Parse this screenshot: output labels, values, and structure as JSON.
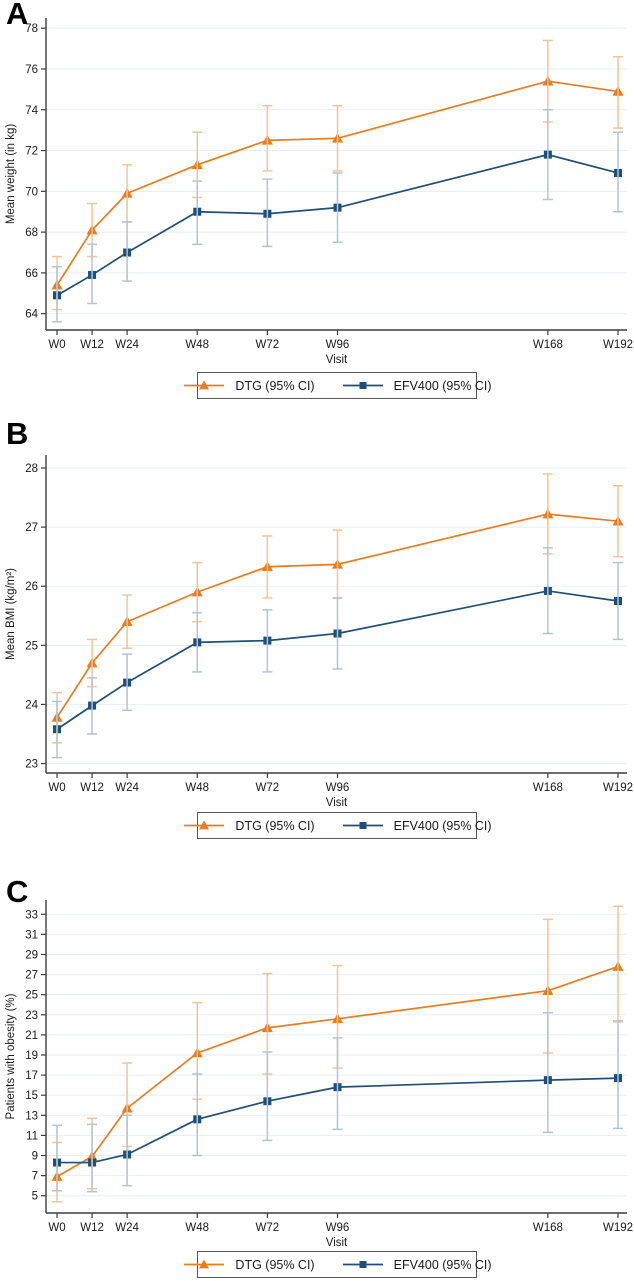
{
  "figure": {
    "background": "#ffffff",
    "text_color": "#1a1a1a",
    "axis_color": "#3c3c3c",
    "grid_color": "#e6edf3"
  },
  "panels": [
    {
      "label": "A"
    },
    {
      "label": "B"
    },
    {
      "label": "C"
    }
  ],
  "legend": {
    "dtg_label": "DTG (95% CI)",
    "efv_label": "EFV400 (95% CI)"
  },
  "chart_data": [
    {
      "type": "line",
      "panel": "A",
      "xlabel": "Visit",
      "ylabel": "Mean weight (in kg)",
      "categories": [
        "W0",
        "W12",
        "W24",
        "W48",
        "W72",
        "W96",
        "W168",
        "W192"
      ],
      "x_weeks": [
        0,
        12,
        24,
        48,
        72,
        96,
        168,
        192
      ],
      "ylim": [
        63.2,
        78.5
      ],
      "yticks": [
        64,
        66,
        68,
        70,
        72,
        74,
        76,
        78
      ],
      "grid": true,
      "legend_position": "bottom",
      "series": [
        {
          "name": "DTG (95% CI)",
          "marker": "triangle",
          "color": "#e97c1f",
          "ci_color": "#f5c398",
          "values": [
            65.4,
            68.1,
            69.9,
            71.3,
            72.5,
            72.6,
            75.4,
            74.9
          ],
          "ci_low": [
            64.2,
            66.8,
            68.5,
            69.7,
            71.0,
            71.0,
            73.4,
            73.1
          ],
          "ci_high": [
            66.8,
            69.4,
            71.3,
            72.9,
            74.2,
            74.2,
            77.4,
            76.6
          ]
        },
        {
          "name": "EFV400 (95% CI)",
          "marker": "square",
          "color": "#1f4e79",
          "ci_color": "#afc4d8",
          "values": [
            64.9,
            65.9,
            67.0,
            69.0,
            68.9,
            69.2,
            71.8,
            70.9
          ],
          "ci_low": [
            63.6,
            64.5,
            65.6,
            67.4,
            67.3,
            67.5,
            69.6,
            69.0
          ],
          "ci_high": [
            66.3,
            67.4,
            68.5,
            70.5,
            70.6,
            70.9,
            74.0,
            72.9
          ]
        }
      ]
    },
    {
      "type": "line",
      "panel": "B",
      "xlabel": "Visit",
      "ylabel": "Mean BMI (kg/m²)",
      "categories": [
        "W0",
        "W12",
        "W24",
        "W48",
        "W72",
        "W96",
        "W168",
        "W192"
      ],
      "x_weeks": [
        0,
        12,
        24,
        48,
        72,
        96,
        168,
        192
      ],
      "ylim": [
        22.84,
        28.22
      ],
      "yticks": [
        23,
        24,
        25,
        26,
        27,
        28
      ],
      "grid": true,
      "legend_position": "bottom",
      "series": [
        {
          "name": "DTG (95% CI)",
          "marker": "triangle",
          "color": "#e97c1f",
          "ci_color": "#f5c398",
          "values": [
            23.78,
            24.7,
            25.4,
            25.9,
            26.33,
            26.37,
            27.22,
            27.1
          ],
          "ci_low": [
            23.35,
            24.3,
            24.95,
            25.4,
            25.8,
            25.8,
            26.55,
            26.5
          ],
          "ci_high": [
            24.2,
            25.1,
            25.85,
            26.4,
            26.85,
            26.95,
            27.9,
            27.7
          ]
        },
        {
          "name": "EFV400 (95% CI)",
          "marker": "square",
          "color": "#1f4e79",
          "ci_color": "#afc4d8",
          "values": [
            23.58,
            23.98,
            24.37,
            25.05,
            25.08,
            25.2,
            25.92,
            25.75
          ],
          "ci_low": [
            23.1,
            23.5,
            23.9,
            24.55,
            24.55,
            24.6,
            25.2,
            25.1
          ],
          "ci_high": [
            24.05,
            24.45,
            24.85,
            25.55,
            25.6,
            25.8,
            26.65,
            26.4
          ]
        }
      ]
    },
    {
      "type": "line",
      "panel": "C",
      "xlabel": "Visit",
      "ylabel": "Patients with obesity (%)",
      "categories": [
        "W0",
        "W12",
        "W24",
        "W48",
        "W72",
        "W96",
        "W168",
        "W192"
      ],
      "x_weeks": [
        0,
        12,
        24,
        48,
        72,
        96,
        168,
        192
      ],
      "ylim": [
        3.28,
        34.42
      ],
      "yticks": [
        5,
        7,
        9,
        11,
        13,
        15,
        17,
        19,
        21,
        23,
        25,
        27,
        29,
        31,
        33
      ],
      "grid": true,
      "legend_position": "bottom",
      "series": [
        {
          "name": "DTG (95% CI)",
          "marker": "triangle",
          "color": "#e97c1f",
          "ci_color": "#f5c398",
          "values": [
            6.9,
            8.9,
            13.7,
            19.2,
            21.7,
            22.6,
            25.4,
            27.8
          ],
          "ci_low": [
            4.4,
            5.7,
            9.9,
            14.6,
            17.1,
            17.7,
            19.2,
            22.3
          ],
          "ci_high": [
            10.3,
            12.7,
            18.2,
            24.2,
            27.1,
            27.9,
            32.5,
            33.8
          ]
        },
        {
          "name": "EFV400 (95% CI)",
          "marker": "square",
          "color": "#1f4e79",
          "ci_color": "#afc4d8",
          "values": [
            8.3,
            8.3,
            9.1,
            12.6,
            14.4,
            15.8,
            16.5,
            16.7
          ],
          "ci_low": [
            5.5,
            5.4,
            6.0,
            9.0,
            10.5,
            11.6,
            11.3,
            11.7
          ],
          "ci_high": [
            12.0,
            12.1,
            13.0,
            17.1,
            19.3,
            20.7,
            23.2,
            22.4
          ]
        }
      ]
    }
  ]
}
